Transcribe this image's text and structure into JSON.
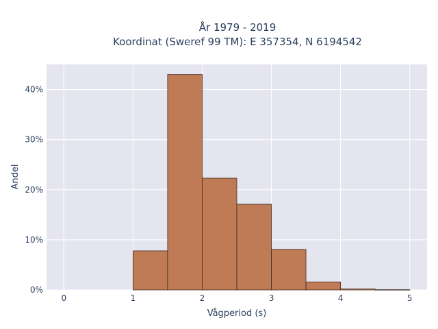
{
  "chart_data": {
    "type": "bar",
    "title_lines": [
      "År 1979 - 2019",
      "Koordinat (Sweref 99 TM): E 357354, N 6194542"
    ],
    "xlabel": "Vågperiod (s)",
    "ylabel": "Andel",
    "xlim": [
      -0.25,
      5.25
    ],
    "ylim": [
      0,
      45
    ],
    "xticks": [
      0,
      1,
      2,
      3,
      4,
      5
    ],
    "xtick_labels": [
      "0",
      "1",
      "2",
      "3",
      "4",
      "5"
    ],
    "yticks": [
      0,
      10,
      20,
      30,
      40
    ],
    "ytick_labels": [
      "0%",
      "10%",
      "20%",
      "30%",
      "40%"
    ],
    "bin_edges": [
      1.0,
      1.5,
      2.0,
      2.5,
      3.0,
      3.5,
      4.0,
      4.5,
      5.0
    ],
    "values": [
      7.8,
      43.0,
      22.3,
      17.1,
      8.1,
      1.6,
      0.2,
      0.05
    ],
    "grid": true,
    "colors": {
      "bar": "#bf7b55",
      "bar_edge": "#3b2a20",
      "plot_bg": "#e5e5ef",
      "grid": "#ffffff",
      "text": "#2a3f5f"
    }
  }
}
